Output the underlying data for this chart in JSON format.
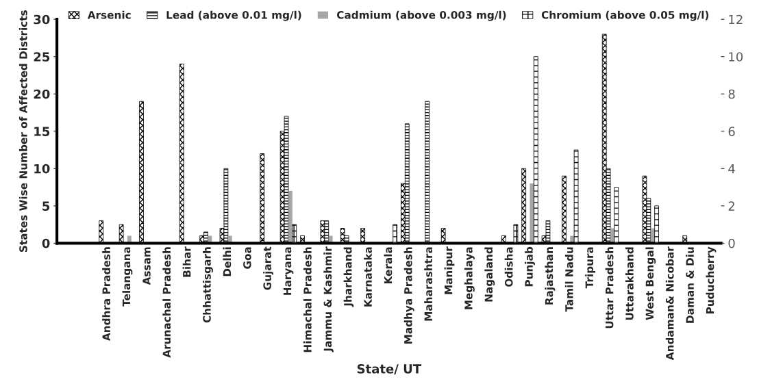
{
  "chart_data": {
    "type": "bar",
    "categories": [
      "Andhra Pradesh",
      "Telangana",
      "Assam",
      "Arunachal Pradesh",
      "Bihar",
      "Chhattisgarh",
      "Delhi",
      "Goa",
      "Gujarat",
      "Haryana",
      "Himachal Pradesh",
      "Jammu & Kashmir",
      "Jharkhand",
      "Karnataka",
      "Kerala",
      "Madhya Pradesh",
      "Maharashtra",
      "Manipur",
      "Meghalaya",
      "Nagaland",
      "Odisha",
      "Punjab",
      "Rajasthan",
      "Tamil Nadu",
      "Tripura",
      "Uttar Pradesh",
      "Uttarakhand",
      "West Bengal",
      "Andaman& Nicobar",
      "Daman & Diu",
      "Puducherry"
    ],
    "series": [
      {
        "name": "Arsenic",
        "color": "#000000",
        "values": [
          3,
          2.5,
          19,
          0,
          24,
          1,
          2,
          0,
          12,
          15,
          1,
          3,
          2,
          2,
          0,
          8,
          0,
          2,
          0,
          0,
          1,
          10,
          1,
          9,
          0,
          28,
          0,
          9,
          0,
          1,
          0
        ]
      },
      {
        "name": "Lead (above 0.01 mg/l)",
        "color": "#000000",
        "values": [
          0,
          0,
          0,
          0,
          0,
          1.5,
          10,
          0,
          0,
          17,
          0,
          3,
          1,
          0,
          0,
          16,
          19,
          0,
          0,
          0,
          0,
          0,
          3,
          0,
          0,
          10,
          0,
          6,
          0,
          0,
          0
        ]
      },
      {
        "name": "Cadmium (above 0.003 mg/l)",
        "color": "#a6a6a6",
        "values": [
          0,
          1,
          0,
          0,
          0,
          1,
          1,
          0,
          0,
          7,
          0,
          1,
          0,
          0,
          0,
          0,
          0,
          0,
          0,
          0,
          0,
          8,
          0,
          1,
          0,
          2,
          0,
          2,
          0,
          0,
          0
        ]
      },
      {
        "name": "Chromium (above 0.05 mg/l)",
        "color": "#000000",
        "axis": "y2",
        "values": [
          0,
          0,
          0,
          0,
          0,
          0,
          0,
          0,
          0,
          1,
          0,
          0,
          0,
          0,
          1,
          0,
          0,
          0,
          0,
          0,
          1,
          10,
          0,
          5,
          0,
          3,
          0,
          2,
          0,
          0,
          0
        ]
      }
    ],
    "xlabel": "State/ UT",
    "ylabel": "States Wise Number of Affected Districts",
    "ylim": [
      0,
      30
    ],
    "yticks": [
      0,
      5,
      10,
      15,
      20,
      25,
      30
    ],
    "y2lim": [
      0,
      12
    ],
    "y2ticks": [
      0,
      2,
      4,
      6,
      8,
      10,
      12
    ],
    "legend": "top",
    "grid": false
  }
}
